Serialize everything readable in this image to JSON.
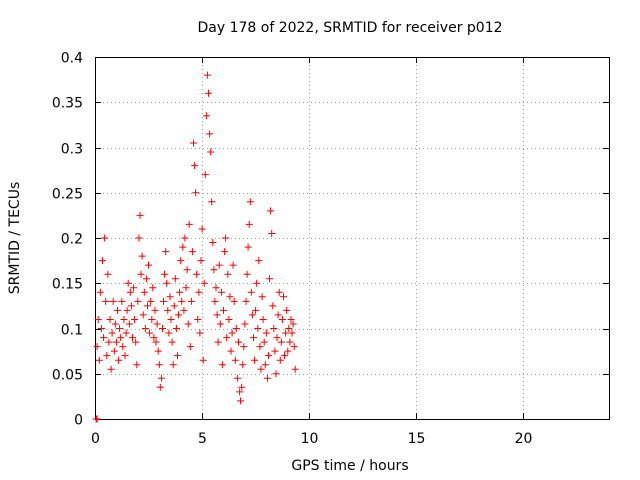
{
  "colors": {
    "series": "#ff0000",
    "grid": "#a0a0a0",
    "axis": "#000000"
  },
  "chart_data": {
    "type": "scatter",
    "title": "Day 178 of 2022, SRMTID for receiver p012",
    "xlabel": "GPS time / hours",
    "ylabel": "SRMTID / TECUs",
    "xlim": [
      0,
      24
    ],
    "ylim": [
      0,
      0.4
    ],
    "xticks": [
      0,
      5,
      10,
      15,
      20
    ],
    "xtick_labels": [
      "0",
      "5",
      "10",
      "15",
      "20"
    ],
    "yticks": [
      0,
      0.05,
      0.1,
      0.15,
      0.2,
      0.25,
      0.3,
      0.35,
      0.4
    ],
    "ytick_labels": [
      "0",
      "0.05",
      "0.1",
      "0.15",
      "0.2",
      "0.25",
      "0.3",
      "0.35",
      "0.4"
    ],
    "grid": true,
    "marker": "plus",
    "series": [
      {
        "name": "SRMTID",
        "points": [
          [
            0.05,
            0.0
          ],
          [
            0.1,
            0.0
          ],
          [
            0.1,
            0.08
          ],
          [
            0.15,
            0.11
          ],
          [
            0.2,
            0.065
          ],
          [
            0.25,
            0.14
          ],
          [
            0.3,
            0.1
          ],
          [
            0.35,
            0.175
          ],
          [
            0.4,
            0.09
          ],
          [
            0.45,
            0.2
          ],
          [
            0.5,
            0.13
          ],
          [
            0.55,
            0.07
          ],
          [
            0.6,
            0.16
          ],
          [
            0.65,
            0.085
          ],
          [
            0.7,
            0.11
          ],
          [
            0.75,
            0.055
          ],
          [
            0.8,
            0.095
          ],
          [
            0.85,
            0.13
          ],
          [
            0.9,
            0.075
          ],
          [
            0.95,
            0.105
          ],
          [
            1.0,
            0.085
          ],
          [
            1.05,
            0.12
          ],
          [
            1.1,
            0.065
          ],
          [
            1.15,
            0.1
          ],
          [
            1.2,
            0.09
          ],
          [
            1.25,
            0.13
          ],
          [
            1.3,
            0.08
          ],
          [
            1.35,
            0.11
          ],
          [
            1.4,
            0.07
          ],
          [
            1.45,
            0.095
          ],
          [
            1.5,
            0.12
          ],
          [
            1.55,
            0.15
          ],
          [
            1.6,
            0.105
          ],
          [
            1.65,
            0.14
          ],
          [
            1.7,
            0.125
          ],
          [
            1.75,
            0.09
          ],
          [
            1.8,
            0.145
          ],
          [
            1.85,
            0.11
          ],
          [
            1.9,
            0.085
          ],
          [
            1.95,
            0.06
          ],
          [
            2.0,
            0.13
          ],
          [
            2.05,
            0.2
          ],
          [
            2.1,
            0.225
          ],
          [
            2.15,
            0.16
          ],
          [
            2.2,
            0.18
          ],
          [
            2.25,
            0.115
          ],
          [
            2.3,
            0.14
          ],
          [
            2.35,
            0.1
          ],
          [
            2.4,
            0.155
          ],
          [
            2.45,
            0.125
          ],
          [
            2.5,
            0.17
          ],
          [
            2.55,
            0.095
          ],
          [
            2.6,
            0.13
          ],
          [
            2.65,
            0.11
          ],
          [
            2.7,
            0.145
          ],
          [
            2.75,
            0.09
          ],
          [
            2.8,
            0.12
          ],
          [
            2.85,
            0.085
          ],
          [
            2.9,
            0.105
          ],
          [
            2.95,
            0.075
          ],
          [
            3.0,
            0.06
          ],
          [
            3.05,
            0.035
          ],
          [
            3.1,
            0.045
          ],
          [
            3.15,
            0.1
          ],
          [
            3.2,
            0.13
          ],
          [
            3.25,
            0.16
          ],
          [
            3.3,
            0.185
          ],
          [
            3.35,
            0.15
          ],
          [
            3.4,
            0.12
          ],
          [
            3.45,
            0.095
          ],
          [
            3.5,
            0.135
          ],
          [
            3.55,
            0.11
          ],
          [
            3.6,
            0.085
          ],
          [
            3.65,
            0.06
          ],
          [
            3.7,
            0.125
          ],
          [
            3.75,
            0.155
          ],
          [
            3.8,
            0.1
          ],
          [
            3.85,
            0.07
          ],
          [
            3.9,
            0.115
          ],
          [
            3.95,
            0.14
          ],
          [
            4.0,
            0.175
          ],
          [
            4.05,
            0.13
          ],
          [
            4.1,
            0.19
          ],
          [
            4.15,
            0.12
          ],
          [
            4.2,
            0.2
          ],
          [
            4.25,
            0.145
          ],
          [
            4.3,
            0.165
          ],
          [
            4.35,
            0.105
          ],
          [
            4.4,
            0.215
          ],
          [
            4.45,
            0.08
          ],
          [
            4.5,
            0.13
          ],
          [
            4.55,
            0.185
          ],
          [
            4.6,
            0.305
          ],
          [
            4.65,
            0.28
          ],
          [
            4.7,
            0.25
          ],
          [
            4.75,
            0.16
          ],
          [
            4.8,
            0.11
          ],
          [
            4.85,
            0.14
          ],
          [
            4.9,
            0.095
          ],
          [
            4.95,
            0.175
          ],
          [
            5.0,
            0.21
          ],
          [
            5.05,
            0.065
          ],
          [
            5.1,
            0.15
          ],
          [
            5.15,
            0.27
          ],
          [
            5.2,
            0.335
          ],
          [
            5.25,
            0.38
          ],
          [
            5.3,
            0.36
          ],
          [
            5.35,
            0.315
          ],
          [
            5.4,
            0.295
          ],
          [
            5.45,
            0.24
          ],
          [
            5.5,
            0.195
          ],
          [
            5.55,
            0.165
          ],
          [
            5.6,
            0.13
          ],
          [
            5.65,
            0.145
          ],
          [
            5.7,
            0.115
          ],
          [
            5.75,
            0.085
          ],
          [
            5.8,
            0.17
          ],
          [
            5.85,
            0.105
          ],
          [
            5.9,
            0.14
          ],
          [
            5.95,
            0.06
          ],
          [
            6.0,
            0.12
          ],
          [
            6.05,
            0.185
          ],
          [
            6.1,
            0.2
          ],
          [
            6.15,
            0.09
          ],
          [
            6.2,
            0.16
          ],
          [
            6.25,
            0.11
          ],
          [
            6.3,
            0.135
          ],
          [
            6.35,
            0.075
          ],
          [
            6.4,
            0.095
          ],
          [
            6.45,
            0.17
          ],
          [
            6.5,
            0.13
          ],
          [
            6.55,
            0.065
          ],
          [
            6.6,
            0.1
          ],
          [
            6.65,
            0.045
          ],
          [
            6.7,
            0.085
          ],
          [
            6.75,
            0.03
          ],
          [
            6.8,
            0.02
          ],
          [
            6.85,
            0.035
          ],
          [
            6.9,
            0.06
          ],
          [
            6.95,
            0.08
          ],
          [
            7.0,
            0.105
          ],
          [
            7.05,
            0.13
          ],
          [
            7.1,
            0.16
          ],
          [
            7.15,
            0.19
          ],
          [
            7.2,
            0.215
          ],
          [
            7.25,
            0.24
          ],
          [
            7.3,
            0.14
          ],
          [
            7.35,
            0.115
          ],
          [
            7.4,
            0.09
          ],
          [
            7.45,
            0.065
          ],
          [
            7.5,
            0.12
          ],
          [
            7.55,
            0.15
          ],
          [
            7.6,
            0.1
          ],
          [
            7.65,
            0.175
          ],
          [
            7.7,
            0.08
          ],
          [
            7.75,
            0.055
          ],
          [
            7.8,
            0.135
          ],
          [
            7.85,
            0.11
          ],
          [
            7.9,
            0.085
          ],
          [
            7.95,
            0.06
          ],
          [
            8.0,
            0.095
          ],
          [
            8.05,
            0.045
          ],
          [
            8.1,
            0.07
          ],
          [
            8.15,
            0.155
          ],
          [
            8.2,
            0.23
          ],
          [
            8.25,
            0.205
          ],
          [
            8.3,
            0.125
          ],
          [
            8.35,
            0.1
          ],
          [
            8.4,
            0.075
          ],
          [
            8.45,
            0.05
          ],
          [
            8.5,
            0.09
          ],
          [
            8.55,
            0.115
          ],
          [
            8.6,
            0.14
          ],
          [
            8.65,
            0.065
          ],
          [
            8.7,
            0.085
          ],
          [
            8.75,
            0.11
          ],
          [
            8.8,
            0.135
          ],
          [
            8.85,
            0.07
          ],
          [
            8.9,
            0.095
          ],
          [
            8.95,
            0.12
          ],
          [
            9.0,
            0.075
          ],
          [
            9.05,
            0.1
          ],
          [
            9.1,
            0.085
          ],
          [
            9.15,
            0.11
          ],
          [
            9.2,
            0.095
          ],
          [
            9.25,
            0.105
          ],
          [
            9.3,
            0.08
          ],
          [
            9.35,
            0.055
          ]
        ]
      }
    ]
  }
}
